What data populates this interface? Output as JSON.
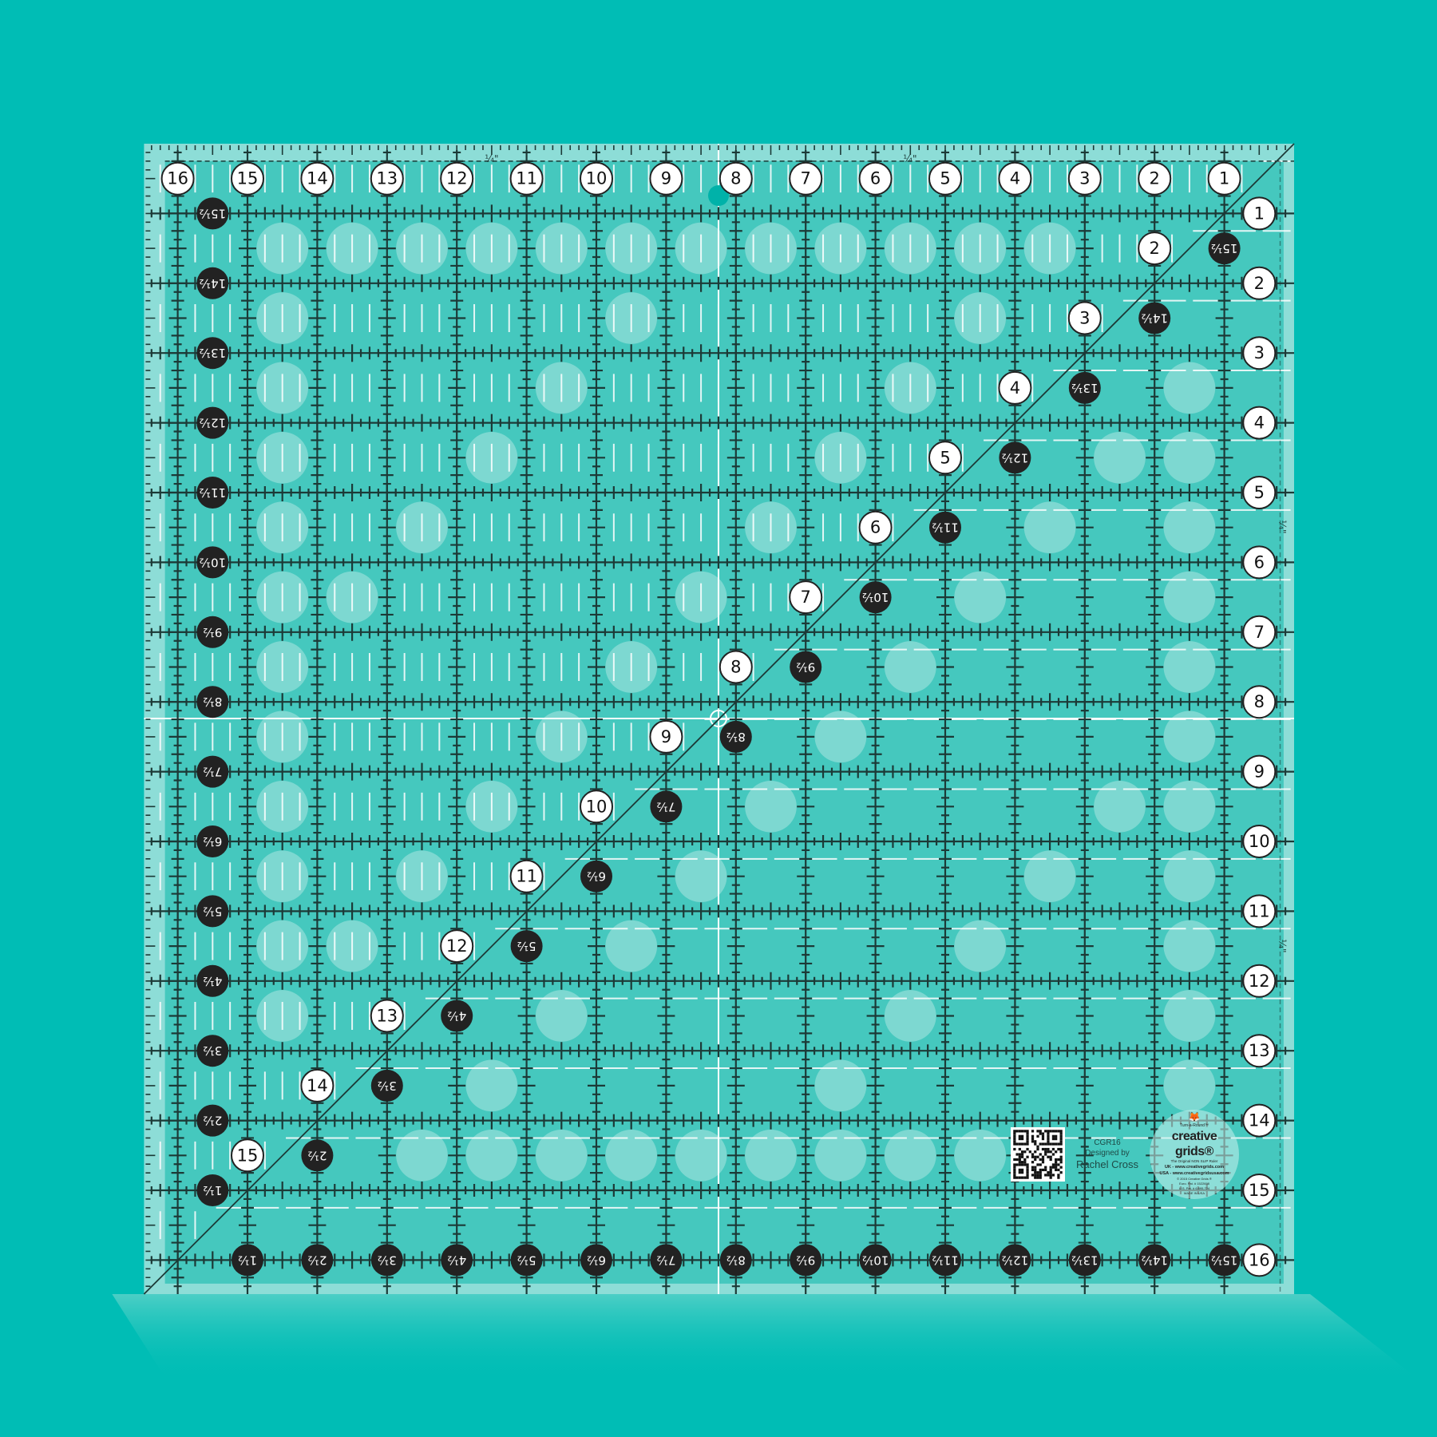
{
  "colors": {
    "background": "#00bdb5",
    "ruler": "#45c8be",
    "frost": "#a6e3dd",
    "grid_line": "#1c3a37",
    "white_label": "#ffffff",
    "black_label": "#222222",
    "dot": "#00b2a9"
  },
  "ruler": {
    "top_labels": [
      "1",
      "2",
      "3",
      "4",
      "5",
      "6",
      "7",
      "8",
      "9",
      "10",
      "11",
      "12",
      "13",
      "14",
      "15",
      "16"
    ],
    "right_labels": [
      "1",
      "2",
      "3",
      "4",
      "5",
      "6",
      "7",
      "8",
      "9",
      "10",
      "11",
      "12",
      "13",
      "14",
      "15",
      "16"
    ],
    "left_labels": [
      "15½",
      "14½",
      "13½",
      "12½",
      "11½",
      "10½",
      "9½",
      "8½",
      "7½",
      "6½",
      "5½",
      "4½",
      "3½",
      "2½",
      "1½"
    ],
    "bottom_labels": [
      "15½",
      "14½",
      "13½",
      "12½",
      "11½",
      "10½",
      "9½",
      "8½",
      "7½",
      "6½",
      "5½",
      "4½",
      "3½",
      "2½",
      "1½"
    ],
    "diagonal_white_labels": [
      "2",
      "3",
      "4",
      "5",
      "6",
      "7",
      "8",
      "9",
      "10",
      "11",
      "12",
      "13",
      "14",
      "15"
    ],
    "diagonal_black_labels": [
      "15½",
      "14½",
      "13½",
      "12½",
      "11½",
      "10½",
      "9½",
      "8½",
      "7½",
      "6½",
      "5½",
      "4½",
      "3½",
      "2½"
    ],
    "quarter_marks": [
      "¼\"",
      "¼\"",
      "¼\"",
      "¼\""
    ]
  },
  "product": {
    "model": "CGR16",
    "designed_by": "Designed by",
    "designer": "Rachel Cross"
  },
  "logo": {
    "tagline_top": "Turn-a-Round™",
    "brand_line1": "creative",
    "brand_line2": "grids®",
    "subtitle": "The Original NON SLIP Ruler",
    "uk_url": "UK - www.creativegrids.com",
    "usa_url": "USA - www.creativegridsusa.com",
    "copyright": "© 2015 Creative Grids ®",
    "euro_patent": "Euro. Pat. # 1522698",
    "us_patent": "U.S. Pat. # 6,895,724",
    "made_in": "MADE IN USA"
  }
}
